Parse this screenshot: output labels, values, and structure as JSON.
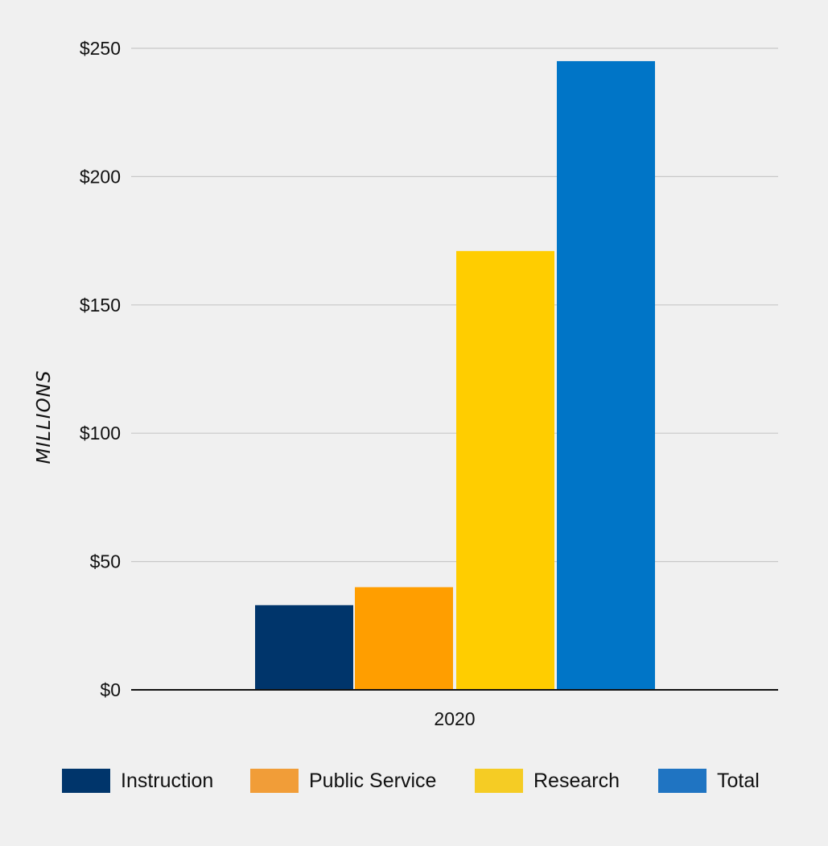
{
  "chart_data": {
    "type": "bar",
    "categories": [
      "2020"
    ],
    "series": [
      {
        "name": "Instruction",
        "values": [
          33
        ],
        "color": "#00356b",
        "legend_color": "#00356b"
      },
      {
        "name": "Public Service",
        "values": [
          40
        ],
        "color": "#ff9e00",
        "legend_color": "#f19d38"
      },
      {
        "name": "Research",
        "values": [
          171
        ],
        "color": "#ffcd00",
        "legend_color": "#f5cc24"
      },
      {
        "name": "Total",
        "values": [
          245
        ],
        "color": "#0075c7",
        "legend_color": "#1f74c2"
      }
    ],
    "title": "",
    "xlabel": "",
    "ylabel": "MILLIONS",
    "ylim": [
      0,
      250
    ],
    "yticks": [
      0,
      50,
      100,
      150,
      200,
      250
    ],
    "ytick_labels": [
      "$0",
      "$50",
      "$100",
      "$150",
      "$200",
      "$250"
    ],
    "grid": true,
    "legend_position": "bottom"
  }
}
